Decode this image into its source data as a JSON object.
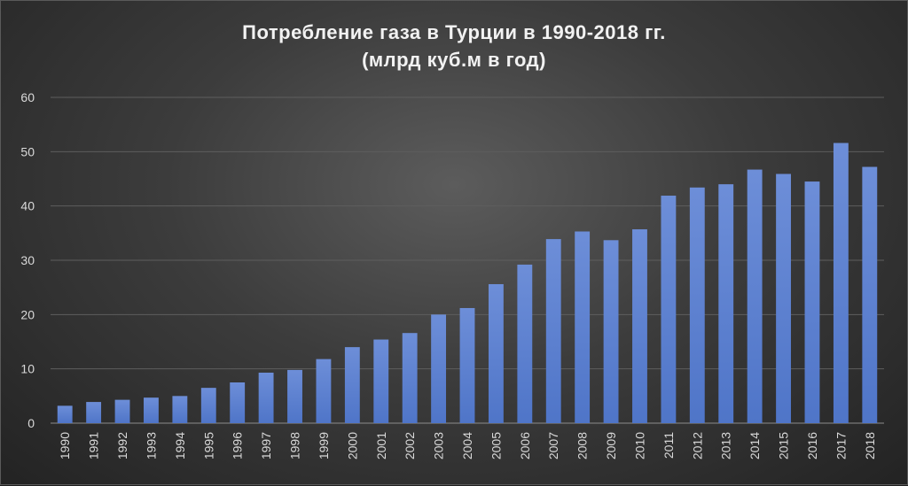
{
  "chart_data": {
    "type": "bar",
    "title": "Потребление газа в Турции в 1990-2018 гг.",
    "subtitle": "(млрд куб.м в год)",
    "xlabel": "",
    "ylabel": "",
    "ylim": [
      0,
      60
    ],
    "yticks": [
      "0",
      "10",
      "20",
      "30",
      "40",
      "50",
      "60"
    ],
    "grid": true,
    "categories": [
      "1990",
      "1991",
      "1992",
      "1993",
      "1994",
      "1995",
      "1996",
      "1997",
      "1998",
      "1999",
      "2000",
      "2001",
      "2002",
      "2003",
      "2004",
      "2005",
      "2006",
      "2007",
      "2008",
      "2009",
      "2010",
      "2011",
      "2012",
      "2013",
      "2014",
      "2015",
      "2016",
      "2017",
      "2018"
    ],
    "values": [
      3.2,
      3.9,
      4.3,
      4.7,
      5.0,
      6.5,
      7.5,
      9.3,
      9.8,
      11.8,
      14.0,
      15.4,
      16.6,
      20.0,
      21.2,
      25.6,
      29.2,
      33.9,
      35.3,
      33.7,
      35.7,
      41.9,
      43.4,
      44.0,
      46.7,
      45.9,
      44.5,
      51.6,
      47.2
    ],
    "bar_color": "#4f75c8",
    "bar_color_top": "#6d8ed8",
    "background_color": "#3c3c3c",
    "text_color": "#d9d9d9"
  }
}
